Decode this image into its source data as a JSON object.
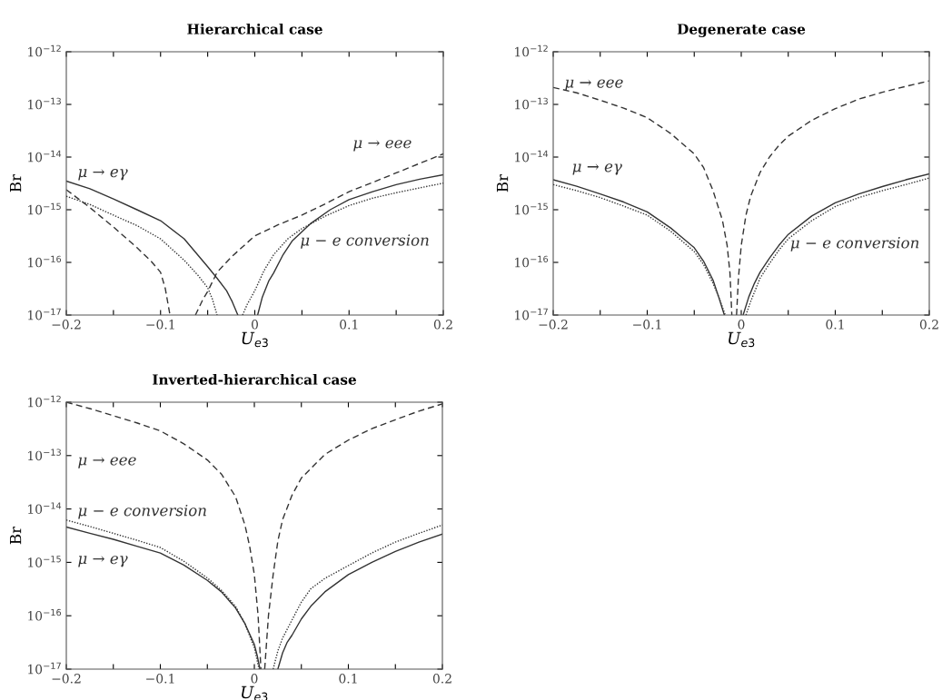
{
  "chart_data": [
    {
      "type": "line",
      "title": "Hierarchical case",
      "xlabel": "U$_{e3}$",
      "ylabel": "Br",
      "log": "y",
      "grid": false,
      "legend": false,
      "xlim": [
        -0.2,
        0.2
      ],
      "ylim": [
        1e-17,
        1e-12
      ],
      "xticks": [
        {
          "value": -0.2,
          "label": "−0.2"
        },
        {
          "value": -0.15,
          "label": null
        },
        {
          "value": -0.1,
          "label": "−0.1"
        },
        {
          "value": -0.05,
          "label": null
        },
        {
          "value": 0,
          "label": "0"
        },
        {
          "value": 0.05,
          "label": null
        },
        {
          "value": 0.1,
          "label": "0.1"
        },
        {
          "value": 0.15,
          "label": null
        },
        {
          "value": 0.2,
          "label": "0.2"
        }
      ],
      "yticks": [
        {
          "value": 1e-17,
          "label": "10$^{−17}$"
        },
        {
          "value": 1e-16,
          "label": "10$^{−16}$"
        },
        {
          "value": 1e-15,
          "label": "10$^{−15}$"
        },
        {
          "value": 1e-14,
          "label": "10$^{−14}$"
        },
        {
          "value": 1e-13,
          "label": "10$^{−13}$"
        },
        {
          "value": 1e-12,
          "label": "10$^{−12}$"
        }
      ],
      "series": [
        {
          "name": "μ → eγ",
          "color": "#333333",
          "line_style": "solid",
          "x": [
            -0.2,
            -0.175,
            -0.15,
            -0.125,
            -0.1,
            -0.075,
            -0.05,
            -0.04,
            -0.03,
            -0.024,
            -0.018,
            -0.008,
            0.003,
            0.008,
            0.015,
            0.02,
            0.03,
            0.04,
            0.06,
            0.08,
            0.1,
            0.125,
            0.15,
            0.175,
            0.2
          ],
          "values": [
            3.5e-15,
            2.5e-15,
            1.6e-15,
            1e-15,
            6.2e-16,
            2.8e-16,
            8.3e-17,
            5e-17,
            2.9e-17,
            1.8e-17,
            1e-17,
            null,
            1e-17,
            2.2e-17,
            4.5e-17,
            6.3e-17,
            1.4e-16,
            2.6e-16,
            5.6e-16,
            1e-15,
            1.55e-15,
            2.2e-15,
            3e-15,
            3.8e-15,
            4.6e-15
          ]
        },
        {
          "name": "μ → eee",
          "color": "#333333",
          "line_style": "dashed",
          "x": [
            -0.2,
            -0.175,
            -0.15,
            -0.125,
            -0.11,
            -0.1,
            -0.095,
            -0.09,
            -0.075,
            -0.063,
            -0.055,
            -0.05,
            -0.04,
            -0.025,
            -0.01,
            0,
            0.025,
            0.05,
            0.075,
            0.1,
            0.125,
            0.15,
            0.175,
            0.2
          ],
          "values": [
            2.4e-15,
            1.1e-15,
            4.7e-16,
            1.9e-16,
            1.05e-16,
            6.5e-17,
            3.2e-17,
            1e-17,
            null,
            1e-17,
            2e-17,
            2.8e-17,
            6.5e-17,
            1.26e-16,
            2.2e-16,
            3.2e-16,
            5.2e-16,
            7.9e-16,
            1.3e-15,
            2.2e-15,
            3.3e-15,
            5e-15,
            7.6e-15,
            1.15e-14
          ]
        },
        {
          "name": "μ − e conversion",
          "color": "#333333",
          "line_style": "dotted",
          "x": [
            -0.2,
            -0.175,
            -0.15,
            -0.125,
            -0.1,
            -0.075,
            -0.06,
            -0.05,
            -0.045,
            -0.04,
            -0.025,
            -0.013,
            -0.008,
            0,
            0.01,
            0.02,
            0.035,
            0.05,
            0.075,
            0.1,
            0.125,
            0.15,
            0.175,
            0.2
          ],
          "values": [
            1.8e-15,
            1.26e-15,
            7.9e-16,
            5e-16,
            2.8e-16,
            1.1e-16,
            5.6e-17,
            3.3e-17,
            2e-17,
            1e-17,
            null,
            1e-17,
            1.6e-17,
            2.9e-17,
            7.1e-17,
            1.4e-16,
            2.8e-16,
            4.4e-16,
            7.6e-16,
            1.2e-15,
            1.66e-15,
            2.1e-15,
            2.6e-15,
            3.2e-15
          ]
        }
      ]
    },
    {
      "type": "line",
      "title": "Degenerate case",
      "xlabel": "U$_{e3}$",
      "ylabel": "Br",
      "log": "y",
      "grid": false,
      "legend": false,
      "xlim": [
        -0.2,
        0.2
      ],
      "ylim": [
        1e-17,
        1e-12
      ],
      "xticks": [
        {
          "value": -0.2,
          "label": "−0.2"
        },
        {
          "value": -0.15,
          "label": null
        },
        {
          "value": -0.1,
          "label": "−0.1"
        },
        {
          "value": -0.05,
          "label": null
        },
        {
          "value": 0,
          "label": "0"
        },
        {
          "value": 0.05,
          "label": null
        },
        {
          "value": 0.1,
          "label": "0.1"
        },
        {
          "value": 0.15,
          "label": null
        },
        {
          "value": 0.2,
          "label": "0.2"
        }
      ],
      "yticks": [
        {
          "value": 1e-17,
          "label": "10$^{−17}$"
        },
        {
          "value": 1e-16,
          "label": "10$^{−16}$"
        },
        {
          "value": 1e-15,
          "label": "10$^{−15}$"
        },
        {
          "value": 1e-14,
          "label": "10$^{−14}$"
        },
        {
          "value": 1e-13,
          "label": "10$^{−13}$"
        },
        {
          "value": 1e-12,
          "label": "10$^{−12}$"
        }
      ],
      "series": [
        {
          "name": "μ → eγ",
          "color": "#333333",
          "line_style": "solid",
          "x": [
            -0.2,
            -0.175,
            -0.15,
            -0.125,
            -0.1,
            -0.075,
            -0.05,
            -0.04,
            -0.03,
            -0.024,
            -0.018,
            -0.008,
            0.002,
            0.008,
            0.014,
            0.02,
            0.03,
            0.04,
            0.05,
            0.075,
            0.1,
            0.125,
            0.15,
            0.175,
            0.2
          ],
          "values": [
            3.7e-15,
            2.8e-15,
            2e-15,
            1.4e-15,
            9.1e-16,
            4.5e-16,
            1.9e-16,
            1.05e-16,
            4.6e-17,
            2.2e-17,
            1e-17,
            null,
            1e-17,
            2.2e-17,
            4e-17,
            6.5e-17,
            1.2e-16,
            2.1e-16,
            3.4e-16,
            7.6e-16,
            1.35e-15,
            2e-15,
            2.75e-15,
            3.7e-15,
            4.8e-15
          ]
        },
        {
          "name": "μ → eee",
          "color": "#333333",
          "line_style": "dashed",
          "x": [
            -0.2,
            -0.175,
            -0.15,
            -0.125,
            -0.1,
            -0.075,
            -0.05,
            -0.04,
            -0.03,
            -0.02,
            -0.015,
            -0.012,
            -0.01,
            -0.0075,
            -0.005,
            -0.003,
            0,
            0.005,
            0.01,
            0.02,
            0.03,
            0.04,
            0.05,
            0.075,
            0.1,
            0.125,
            0.15,
            0.175,
            0.2
          ],
          "values": [
            2.1e-13,
            1.66e-13,
            1.2e-13,
            8.5e-14,
            5.6e-14,
            2.8e-14,
            1.15e-14,
            6.3e-15,
            2.3e-15,
            6.3e-16,
            2.1e-16,
            6.3e-17,
            1e-17,
            null,
            1e-17,
            5e-17,
            2.1e-16,
            7.9e-16,
            1.8e-15,
            5.1e-15,
            1e-14,
            1.66e-14,
            2.5e-14,
            5e-14,
            8.3e-14,
            1.26e-13,
            1.7e-13,
            2.2e-13,
            2.8e-13
          ]
        },
        {
          "name": "μ − e conversion",
          "color": "#333333",
          "line_style": "dotted",
          "x": [
            -0.2,
            -0.175,
            -0.15,
            -0.125,
            -0.1,
            -0.075,
            -0.05,
            -0.04,
            -0.03,
            -0.023,
            -0.017,
            -0.007,
            0.005,
            0.01,
            0.015,
            0.02,
            0.03,
            0.04,
            0.05,
            0.075,
            0.1,
            0.125,
            0.15,
            0.175,
            0.2
          ],
          "values": [
            3e-15,
            2.3e-15,
            1.7e-15,
            1.17e-15,
            7.9e-16,
            3.9e-16,
            1.6e-16,
            9.1e-17,
            4e-17,
            2e-17,
            1e-17,
            null,
            1e-17,
            1.8e-17,
            3e-17,
            5e-17,
            9.5e-17,
            1.7e-16,
            2.8e-16,
            6.2e-16,
            1.15e-15,
            1.7e-15,
            2.3e-15,
            3e-15,
            4e-15
          ]
        }
      ]
    },
    {
      "type": "line",
      "title": "Inverted-hierarchical case",
      "xlabel": "U$_{e3}$",
      "ylabel": "Br",
      "log": "y",
      "grid": false,
      "legend": false,
      "xlim": [
        -0.2,
        0.2
      ],
      "ylim": [
        1e-17,
        1e-12
      ],
      "xticks": [
        {
          "value": -0.2,
          "label": "−0.2"
        },
        {
          "value": -0.15,
          "label": null
        },
        {
          "value": -0.1,
          "label": "−0.1"
        },
        {
          "value": -0.05,
          "label": null
        },
        {
          "value": 0,
          "label": "0"
        },
        {
          "value": 0.05,
          "label": null
        },
        {
          "value": 0.1,
          "label": "0.1"
        },
        {
          "value": 0.15,
          "label": null
        },
        {
          "value": 0.2,
          "label": "0.2"
        }
      ],
      "yticks": [
        {
          "value": 1e-17,
          "label": "10$^{−17}$"
        },
        {
          "value": 1e-16,
          "label": "10$^{−16}$"
        },
        {
          "value": 1e-15,
          "label": "10$^{−15}$"
        },
        {
          "value": 1e-14,
          "label": "10$^{−14}$"
        },
        {
          "value": 1e-13,
          "label": "10$^{−13}$"
        },
        {
          "value": 1e-12,
          "label": "10$^{−12}$"
        }
      ],
      "series": [
        {
          "name": "μ → eγ",
          "color": "#333333",
          "line_style": "solid",
          "x": [
            -0.2,
            -0.175,
            -0.15,
            -0.125,
            -0.1,
            -0.075,
            -0.05,
            -0.035,
            -0.02,
            -0.01,
            0,
            0.003,
            0.006,
            0.015,
            0.025,
            0.03,
            0.035,
            0.04,
            0.05,
            0.06,
            0.075,
            0.1,
            0.125,
            0.15,
            0.175,
            0.2
          ],
          "values": [
            4.6e-15,
            3.5e-15,
            2.7e-15,
            2e-15,
            1.5e-15,
            8.9e-16,
            4.6e-16,
            2.8e-16,
            1.4e-16,
            7.1e-17,
            2.9e-17,
            1.8e-17,
            1e-17,
            null,
            1e-17,
            2e-17,
            3.2e-17,
            4.3e-17,
            8.7e-17,
            1.5e-16,
            2.8e-16,
            5.9e-16,
            1e-15,
            1.6e-15,
            2.4e-15,
            3.4e-15
          ]
        },
        {
          "name": "μ → eee",
          "color": "#333333",
          "line_style": "dashed",
          "x": [
            -0.2,
            -0.175,
            -0.15,
            -0.125,
            -0.1,
            -0.075,
            -0.05,
            -0.035,
            -0.02,
            -0.01,
            -0.005,
            0,
            0.004,
            0.007,
            0.009,
            0.011,
            0.015,
            0.02,
            0.025,
            0.03,
            0.04,
            0.05,
            0.075,
            0.1,
            0.125,
            0.15,
            0.175,
            0.2
          ],
          "values": [
            1e-12,
            7.6e-13,
            5.6e-13,
            4.1e-13,
            2.9e-13,
            1.66e-13,
            8.3e-14,
            4.5e-14,
            1.7e-14,
            5e-15,
            2e-15,
            5.9e-16,
            1e-16,
            1e-17,
            null,
            1e-17,
            1e-16,
            5.9e-16,
            2.5e-15,
            6.3e-15,
            1.8e-14,
            3.8e-14,
            1.05e-13,
            1.95e-13,
            3.2e-13,
            4.7e-13,
            6.8e-13,
            9.3e-13
          ]
        },
        {
          "name": "μ − e conversion",
          "color": "#333333",
          "line_style": "dotted",
          "x": [
            -0.2,
            -0.175,
            -0.15,
            -0.125,
            -0.1,
            -0.075,
            -0.05,
            -0.035,
            -0.02,
            -0.01,
            0,
            0.005,
            0.012,
            0.02,
            0.025,
            0.03,
            0.04,
            0.05,
            0.06,
            0.075,
            0.1,
            0.125,
            0.15,
            0.175,
            0.2
          ],
          "values": [
            6.2e-15,
            4.7e-15,
            3.5e-15,
            2.6e-15,
            1.9e-15,
            1.05e-15,
            5.1e-16,
            3e-16,
            1.5e-16,
            7.1e-17,
            2.5e-17,
            1e-17,
            null,
            1e-17,
            2.2e-17,
            3.8e-17,
            8.3e-17,
            1.8e-16,
            3.2e-16,
            5e-16,
            8.7e-16,
            1.5e-15,
            2.4e-15,
            3.5e-15,
            5e-15
          ]
        }
      ]
    }
  ]
}
